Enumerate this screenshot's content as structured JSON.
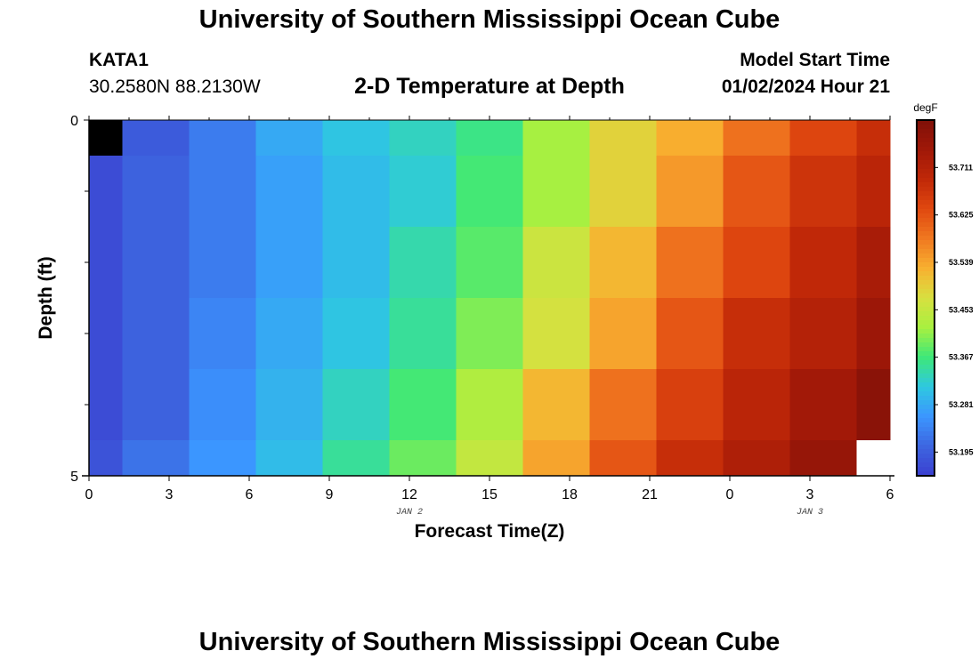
{
  "header": {
    "title": "University of Southern Mississippi Ocean Cube",
    "station": "KATA1",
    "coordinates": "30.2580N  88.2130W",
    "subtitle": "2-D Temperature at Depth",
    "start_label": "Model Start Time",
    "start_value": "01/02/2024 Hour 21"
  },
  "footer": {
    "title": "University of Southern Mississippi Ocean Cube"
  },
  "chart_data": {
    "type": "heatmap",
    "title": "2-D Temperature at Depth",
    "xlabel": "Forecast Time(Z)",
    "ylabel": "Depth (ft)",
    "x_tick_labels": [
      "0",
      "3",
      "6",
      "9",
      "12",
      "15",
      "18",
      "21",
      "0",
      "3",
      "6"
    ],
    "x_day_labels": [
      {
        "label": "JAN 2",
        "at_hour": 12
      },
      {
        "label": "JAN 3",
        "at_hour": 27
      }
    ],
    "x_range_hours": [
      0,
      30
    ],
    "x_column_hours": [
      0,
      2.5,
      5,
      7.5,
      10,
      12.5,
      15,
      17.5,
      20,
      22.5,
      25,
      27.5,
      30
    ],
    "y_tick_labels": [
      "0",
      "5"
    ],
    "y_range": [
      0,
      5
    ],
    "y_row_depths": [
      0,
      1,
      2,
      3,
      4,
      5
    ],
    "colorbar": {
      "unit": "degF",
      "min": 53.152,
      "max": 53.797,
      "tick_labels": [
        "53.711",
        "53.625",
        "53.539",
        "53.453",
        "53.367",
        "53.281",
        "53.195"
      ],
      "colors": [
        "#3b3fd0",
        "#3d66e0",
        "#3b96ff",
        "#2ec8e0",
        "#3ee878",
        "#a8f040",
        "#d8e040",
        "#f8b030",
        "#f07820",
        "#e04810",
        "#c02808",
        "#a01808",
        "#801008"
      ]
    },
    "values": [
      [
        null,
        53.19,
        53.23,
        53.28,
        53.31,
        53.33,
        53.36,
        53.42,
        53.49,
        53.53,
        53.59,
        53.64,
        53.68
      ],
      [
        53.17,
        53.2,
        53.23,
        53.27,
        53.3,
        53.32,
        53.37,
        53.42,
        53.49,
        53.55,
        53.62,
        53.67,
        53.7
      ],
      [
        53.17,
        53.2,
        53.23,
        53.27,
        53.3,
        53.34,
        53.38,
        53.46,
        53.52,
        53.59,
        53.64,
        53.69,
        53.73
      ],
      [
        53.17,
        53.2,
        53.24,
        53.28,
        53.31,
        53.35,
        53.4,
        53.47,
        53.54,
        53.62,
        53.68,
        53.71,
        53.75
      ],
      [
        53.17,
        53.2,
        53.25,
        53.29,
        53.33,
        53.37,
        53.43,
        53.52,
        53.59,
        53.65,
        53.7,
        53.74,
        53.78
      ],
      [
        53.18,
        53.22,
        53.26,
        53.3,
        53.35,
        53.39,
        53.45,
        53.54,
        53.62,
        53.68,
        53.72,
        53.76,
        null
      ]
    ],
    "null_colors": {
      "first_row_first_col": "#000000",
      "last_row_last_col": "#ffffff"
    }
  }
}
